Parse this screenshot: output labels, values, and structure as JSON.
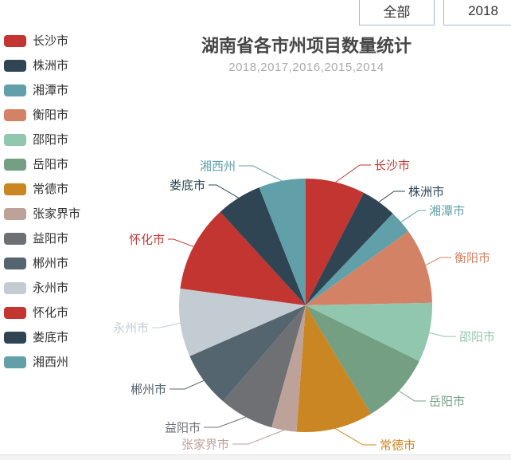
{
  "toolbar": {
    "all_button": "全部",
    "year_button": "2018"
  },
  "chart_data": {
    "type": "pie",
    "title": "湖南省各市州项目数量统计",
    "subtitle": "2018,2017,2016,2015,2014",
    "legend_position": "left",
    "start_angle_deg": 0,
    "values_estimated_from_angles": true,
    "slices": [
      {
        "name": "长沙市",
        "color": "#c23531",
        "value_pct": 7.6
      },
      {
        "name": "株洲市",
        "color": "#2f4554",
        "value_pct": 4.5
      },
      {
        "name": "湘潭市",
        "color": "#61a0a8",
        "value_pct": 3.0
      },
      {
        "name": "衡阳市",
        "color": "#d48265",
        "value_pct": 9.6
      },
      {
        "name": "邵阳市",
        "color": "#91c7ae",
        "value_pct": 7.6
      },
      {
        "name": "岳阳市",
        "color": "#749f83",
        "value_pct": 9.1
      },
      {
        "name": "常德市",
        "color": "#ca8622",
        "value_pct": 9.8
      },
      {
        "name": "张家界市",
        "color": "#bda29a",
        "value_pct": 3.2
      },
      {
        "name": "益阳市",
        "color": "#6e7074",
        "value_pct": 7.0
      },
      {
        "name": "郴州市",
        "color": "#546570",
        "value_pct": 7.1
      },
      {
        "name": "永州市",
        "color": "#c4ccd3",
        "value_pct": 8.7
      },
      {
        "name": "怀化市",
        "color": "#c23531",
        "value_pct": 11.1
      },
      {
        "name": "娄底市",
        "color": "#2f4554",
        "value_pct": 5.8
      },
      {
        "name": "湘西州",
        "color": "#61a0a8",
        "value_pct": 6.0
      }
    ]
  }
}
